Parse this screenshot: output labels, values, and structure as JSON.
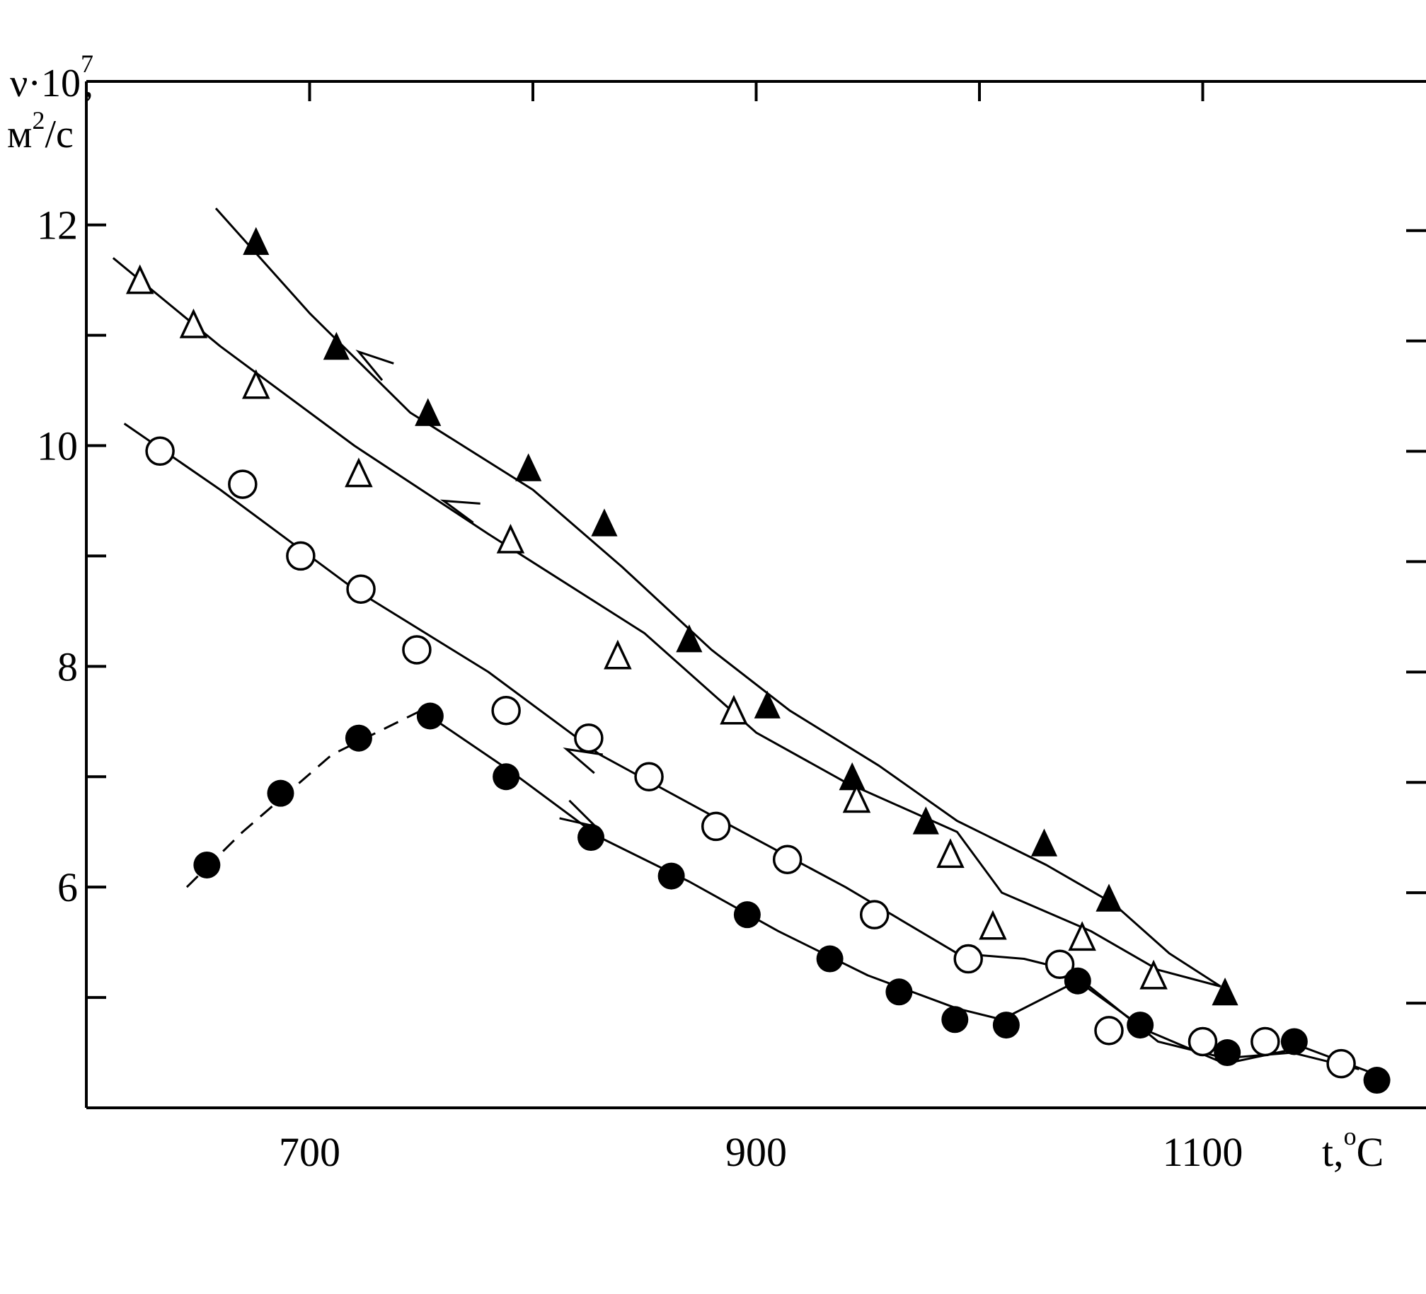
{
  "chart_data": {
    "type": "scatter",
    "ylabel_line1": "ν·10",
    "ylabel_exp": "7",
    "ylabel_comma": ",",
    "ylabel_line2_unit": "м",
    "ylabel_line2_exp": "2",
    "ylabel_line2_rest": "/с",
    "xlabel": "t,",
    "xlabel_deg": "o",
    "xlabel_unit": "C",
    "xlim": [
      600,
      1200
    ],
    "ylim": [
      4.0,
      13.3
    ],
    "xticks": [
      700,
      800,
      900,
      1000,
      1100
    ],
    "xticklabels": [
      "700",
      "",
      "900",
      "",
      "1100"
    ],
    "yticks": [
      5,
      6,
      7,
      8,
      9,
      10,
      11,
      12
    ],
    "yticklabels": [
      "",
      "6",
      "",
      "8",
      "",
      "10",
      "",
      "12"
    ],
    "grid": false,
    "series": [
      {
        "marker": "filled-triangle",
        "points": [
          [
            676,
            11.85
          ],
          [
            712,
            10.9
          ],
          [
            753,
            10.3
          ],
          [
            798,
            9.8
          ],
          [
            832,
            9.3
          ],
          [
            870,
            8.25
          ],
          [
            905,
            7.65
          ],
          [
            943,
            7.0
          ],
          [
            976,
            6.6
          ],
          [
            1029,
            6.4
          ],
          [
            1058,
            5.9
          ],
          [
            1110,
            5.05
          ]
        ],
        "curve": [
          [
            658,
            12.15
          ],
          [
            700,
            11.2
          ],
          [
            745,
            10.3
          ],
          [
            800,
            9.6
          ],
          [
            840,
            8.9
          ],
          [
            880,
            8.15
          ],
          [
            915,
            7.6
          ],
          [
            955,
            7.1
          ],
          [
            990,
            6.6
          ],
          [
            1030,
            6.2
          ],
          [
            1060,
            5.85
          ],
          [
            1085,
            5.4
          ],
          [
            1108,
            5.1
          ]
        ],
        "curve_style": "solid",
        "arrow": {
          "from": [
            740,
            10.6
          ],
          "to": [
            722,
            10.85
          ],
          "direction": "cooling"
        }
      },
      {
        "marker": "open-triangle",
        "points": [
          [
            624,
            11.5
          ],
          [
            648,
            11.1
          ],
          [
            676,
            10.55
          ],
          [
            722,
            9.75
          ],
          [
            790,
            9.15
          ],
          [
            838,
            8.1
          ],
          [
            890,
            7.6
          ],
          [
            945,
            6.8
          ],
          [
            987,
            6.3
          ],
          [
            1006,
            5.65
          ],
          [
            1046,
            5.55
          ],
          [
            1078,
            5.2
          ]
        ],
        "curve": [
          [
            612,
            11.7
          ],
          [
            660,
            10.9
          ],
          [
            720,
            10.0
          ],
          [
            780,
            9.2
          ],
          [
            850,
            8.3
          ],
          [
            900,
            7.4
          ],
          [
            940,
            6.95
          ],
          [
            990,
            6.5
          ],
          [
            1010,
            5.95
          ],
          [
            1050,
            5.6
          ],
          [
            1080,
            5.25
          ],
          [
            1108,
            5.1
          ]
        ],
        "curve_style": "solid",
        "arrow": {
          "from": [
            780,
            9.35
          ],
          "to": [
            760,
            9.5
          ],
          "direction": "cooling"
        }
      },
      {
        "marker": "open-circle",
        "points": [
          [
            633,
            9.95
          ],
          [
            670,
            9.65
          ],
          [
            696,
            9.0
          ],
          [
            723,
            8.7
          ],
          [
            748,
            8.15
          ],
          [
            788,
            7.6
          ],
          [
            825,
            7.35
          ],
          [
            852,
            7.0
          ],
          [
            882,
            6.55
          ],
          [
            914,
            6.25
          ],
          [
            953,
            5.75
          ],
          [
            995,
            5.35
          ],
          [
            1036,
            5.3
          ],
          [
            1058,
            4.7
          ],
          [
            1100,
            4.6
          ],
          [
            1128,
            4.6
          ],
          [
            1162,
            4.4
          ]
        ],
        "curve": [
          [
            617,
            10.2
          ],
          [
            660,
            9.6
          ],
          [
            720,
            8.7
          ],
          [
            780,
            7.95
          ],
          [
            830,
            7.2
          ],
          [
            880,
            6.65
          ],
          [
            940,
            6.0
          ],
          [
            990,
            5.4
          ],
          [
            1020,
            5.35
          ],
          [
            1040,
            5.25
          ],
          [
            1080,
            4.6
          ],
          [
            1110,
            4.45
          ],
          [
            1140,
            4.5
          ],
          [
            1170,
            4.35
          ]
        ],
        "curve_style": "solid",
        "arrow": {
          "from": [
            842,
            7.0
          ],
          "to": [
            815,
            7.25
          ],
          "direction": "cooling"
        }
      },
      {
        "marker": "filled-circle",
        "points": [
          [
            654,
            6.2
          ],
          [
            687,
            6.85
          ],
          [
            722,
            7.35
          ],
          [
            754,
            7.55
          ],
          [
            788,
            7.0
          ],
          [
            826,
            6.45
          ],
          [
            862,
            6.1
          ],
          [
            896,
            5.75
          ],
          [
            933,
            5.35
          ],
          [
            964,
            5.05
          ],
          [
            989,
            4.8
          ],
          [
            1012,
            4.75
          ],
          [
            1044,
            5.15
          ],
          [
            1072,
            4.75
          ],
          [
            1111,
            4.5
          ],
          [
            1141,
            4.6
          ],
          [
            1178,
            4.25
          ]
        ],
        "curve": [
          [
            645,
            6.0
          ],
          [
            670,
            6.5
          ],
          [
            710,
            7.2
          ],
          [
            750,
            7.6
          ],
          [
            790,
            7.05
          ],
          [
            830,
            6.45
          ],
          [
            870,
            6.05
          ],
          [
            910,
            5.6
          ],
          [
            950,
            5.2
          ],
          [
            990,
            4.9
          ],
          [
            1010,
            4.8
          ],
          [
            1044,
            5.15
          ],
          [
            1075,
            4.7
          ],
          [
            1110,
            4.4
          ],
          [
            1145,
            4.55
          ],
          [
            1178,
            4.3
          ]
        ],
        "curve_style": "dashed-then-solid",
        "dashed_until_x": 752,
        "arrow": {
          "from": [
            810,
            6.75
          ],
          "to": [
            828,
            6.55
          ],
          "direction": "heating"
        }
      }
    ]
  }
}
